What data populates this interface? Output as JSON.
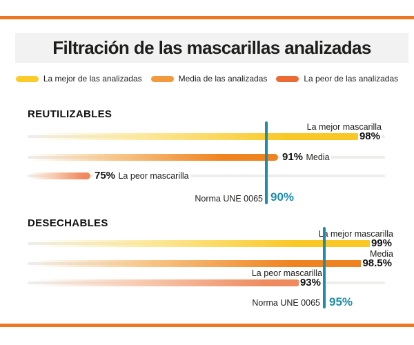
{
  "title": "Filtración de las mascarillas analizadas",
  "legend": [
    {
      "label": "La mejor de las analizadas",
      "color": "#fbcb29"
    },
    {
      "label": "Media de las analizadas",
      "color": "#f29a3d"
    },
    {
      "label": "La peor de las analizadas",
      "color": "#ec6b35"
    }
  ],
  "colors": {
    "accent_orange": "#ee7522",
    "best_yellow": "#fac825",
    "media_orange": "#ef8320",
    "peor_salmon": "#ee8a5e",
    "norma_teal": "#1f8ca9",
    "track_gray": "#ededeb",
    "title_band_gray": "#f2f2f2",
    "text": "#1d1d1b"
  },
  "sections": [
    {
      "heading": "REUTILIZABLES",
      "rows": [
        {
          "label": "La mejor mascarilla",
          "value": "98%"
        },
        {
          "label": "Media",
          "value": "91%"
        },
        {
          "label": "La peor mascarilla",
          "value": "75%"
        }
      ],
      "norma": {
        "label": "Norma UNE 0065",
        "value": "90%"
      }
    },
    {
      "heading": "DESECHABLES",
      "rows": [
        {
          "label": "La mejor mascarilla",
          "value": "99%"
        },
        {
          "label": "Media",
          "value": "98.5%"
        },
        {
          "label": "La peor mascarilla",
          "value": "93%"
        }
      ],
      "norma": {
        "label": "Norma UNE 0065",
        "value": "95%"
      }
    }
  ],
  "chart_data": [
    {
      "type": "bar",
      "title": "REUTILIZABLES",
      "categories": [
        "La mejor mascarilla",
        "Media",
        "La peor mascarilla"
      ],
      "values": [
        98,
        91,
        75
      ],
      "unit": "%",
      "reference_line": {
        "label": "Norma UNE 0065",
        "value": 90
      },
      "xlim": [
        0,
        105
      ],
      "orientation": "horizontal",
      "grid": false,
      "legend_position": "top"
    },
    {
      "type": "bar",
      "title": "DESECHABLES",
      "categories": [
        "La mejor mascarilla",
        "Media",
        "La peor mascarilla"
      ],
      "values": [
        99,
        98.5,
        93
      ],
      "unit": "%",
      "reference_line": {
        "label": "Norma UNE 0065",
        "value": 95
      },
      "xlim": [
        0,
        105
      ],
      "orientation": "horizontal",
      "grid": false,
      "legend_position": "top"
    }
  ]
}
